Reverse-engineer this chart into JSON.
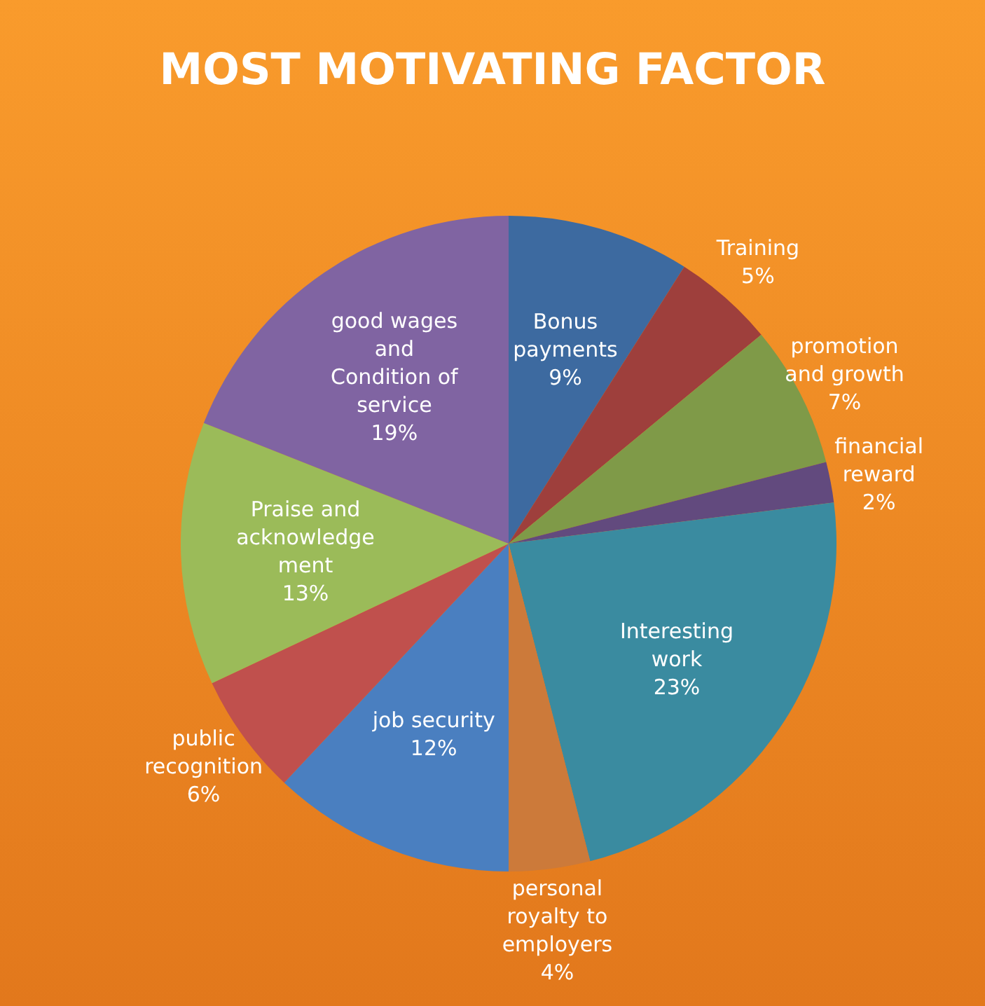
{
  "chart_data": {
    "type": "pie",
    "title": "MOST MOTIVATING FACTOR",
    "categories": [
      "Bonus\npayments",
      "Training",
      "promotion\nand growth",
      "financial\nreward",
      "Interesting\nwork",
      "personal\nroyalty to\nemployers",
      "job security",
      "public\nrecognition",
      "Praise and\nacknowledge\nment",
      "good wages\nand\nCondition of\nservice"
    ],
    "values": [
      9,
      5,
      7,
      2,
      23,
      4,
      12,
      6,
      13,
      19
    ],
    "value_labels": [
      "9%",
      "5%",
      "7%",
      "2%",
      "23%",
      "4%",
      "12%",
      "6%",
      "13%",
      "19%"
    ],
    "colors": [
      "#3d6aa0",
      "#9e3f3c",
      "#7f9a48",
      "#624a7e",
      "#3a8ba0",
      "#cc7a3a",
      "#4a7fc0",
      "#c0504d",
      "#9bbb59",
      "#8064a2"
    ]
  }
}
